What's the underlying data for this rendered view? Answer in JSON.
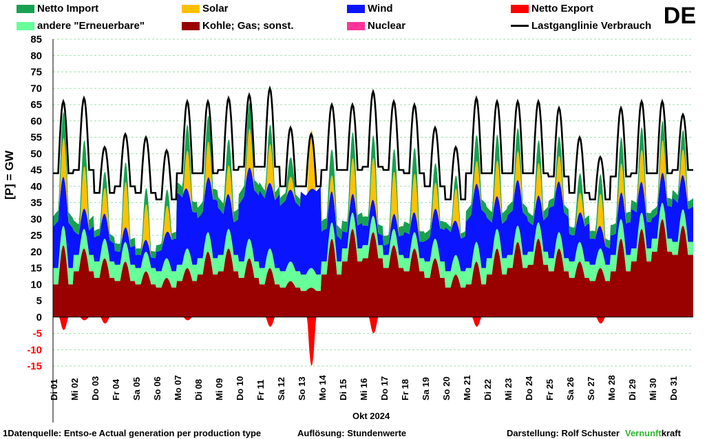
{
  "country": "DE",
  "legend": [
    {
      "label": "Netto Import",
      "color": "#17a151",
      "kind": "swatch"
    },
    {
      "label": "Solar",
      "color": "#ffc000",
      "kind": "swatch"
    },
    {
      "label": "Wind",
      "color": "#0a14ff",
      "kind": "swatch"
    },
    {
      "label": "Netto Export",
      "color": "#ff0000",
      "kind": "swatch"
    },
    {
      "label": "andere \"Erneuerbare\"",
      "color": "#66ff99",
      "kind": "swatch"
    },
    {
      "label": "Kohle; Gas; sonst.",
      "color": "#990000",
      "kind": "swatch"
    },
    {
      "label": "Nuclear",
      "color": "#ff3399",
      "kind": "swatch"
    },
    {
      "label": "Lastganglinie Verbrauch",
      "color": "#000000",
      "kind": "line"
    }
  ],
  "footer": {
    "source": "1Datenquelle: Entso-e  Actual generation per production type",
    "resolution": "Auflösung: Stundenwerte",
    "author": "Darstellung:  Rolf Schuster",
    "brand_green": "Vernunft",
    "brand_black": "kraft"
  },
  "chart_data": {
    "type": "area",
    "title": "",
    "xlabel": "Okt 2024",
    "ylabel": "[P]  =  GW",
    "ylim": [
      -15,
      85
    ],
    "yticks": [
      -15,
      -10,
      -5,
      0,
      5,
      10,
      15,
      20,
      25,
      30,
      35,
      40,
      45,
      50,
      55,
      60,
      65,
      70,
      75,
      80,
      85
    ],
    "grid": true,
    "x_categories": [
      "Di 01",
      "Mi 02",
      "Do 03",
      "Fr 04",
      "Sa 05",
      "So 06",
      "Mo 07",
      "Di 08",
      "Mi 09",
      "Do 10",
      "Fr 11",
      "Sa 12",
      "So 13",
      "Mo 14",
      "Di 15",
      "Mi 16",
      "Do 17",
      "Fr 18",
      "Sa 19",
      "So 20",
      "Mo 21",
      "Di 22",
      "Mi 23",
      "Do 24",
      "Fr 25",
      "Sa 26",
      "So 27",
      "Mo 28",
      "Di 29",
      "Mi 30",
      "Do 31"
    ],
    "x_tick_labels_shown": [
      "Di 01",
      "Mi 02",
      "Do 03",
      "Fr 04",
      "Sa 05",
      "So 06",
      "Mo 07",
      "Di 08",
      "Mi 09",
      "Do 10",
      "Fr 11",
      "Sa 12",
      "So 13",
      "Mo 14",
      "Di 15",
      "Mi 16",
      "Do 17",
      "Fr 18",
      "Sa 19",
      "So 20",
      "Mo 21",
      "Di 22",
      "Mi 23",
      "Do 24",
      "Fr 25",
      "Sa 26",
      "So 27",
      "Mo 28",
      "Di 29",
      "Mi 30",
      "Do 31"
    ],
    "series": [
      {
        "name": "Kohle; Gas; sonst.",
        "color": "#990000",
        "daily_peak": [
          22,
          21,
          18,
          17,
          14,
          12,
          15,
          20,
          21,
          18,
          15,
          11,
          9,
          24,
          27,
          26,
          22,
          21,
          18,
          13,
          17,
          21,
          23,
          24,
          21,
          17,
          15,
          24,
          27,
          30,
          28
        ],
        "daily_low": [
          10,
          14,
          12,
          11,
          10,
          9,
          11,
          13,
          14,
          12,
          10,
          9,
          8,
          13,
          17,
          18,
          15,
          14,
          12,
          9,
          10,
          13,
          15,
          16,
          14,
          12,
          11,
          14,
          17,
          20,
          19
        ]
      },
      {
        "name": "andere \"Erneuerbare\"",
        "color": "#66ff99",
        "daily_peak": [
          6,
          6,
          6,
          6,
          6,
          6,
          6,
          6,
          6,
          6,
          6,
          6,
          6,
          5,
          5,
          5,
          5,
          5,
          6,
          6,
          6,
          6,
          5,
          5,
          5,
          6,
          6,
          6,
          5,
          5,
          5
        ],
        "daily_low": [
          5,
          5,
          5,
          5,
          5,
          5,
          5,
          5,
          5,
          5,
          5,
          5,
          5,
          4,
          4,
          4,
          4,
          4,
          5,
          5,
          5,
          5,
          4,
          4,
          4,
          5,
          5,
          5,
          4,
          4,
          4
        ]
      },
      {
        "name": "Wind",
        "color": "#0a14ff",
        "daily_peak": [
          15,
          10,
          8,
          6,
          4,
          10,
          22,
          18,
          15,
          22,
          26,
          22,
          28,
          10,
          8,
          6,
          6,
          8,
          10,
          14,
          18,
          14,
          14,
          12,
          16,
          12,
          8,
          10,
          12,
          10,
          14
        ],
        "daily_low": [
          10,
          6,
          5,
          4,
          3,
          6,
          16,
          12,
          10,
          16,
          20,
          18,
          24,
          6,
          5,
          3,
          3,
          5,
          6,
          10,
          13,
          10,
          10,
          8,
          12,
          8,
          5,
          6,
          8,
          6,
          10
        ]
      },
      {
        "name": "Solar",
        "color": "#ffc000",
        "daily_peak": [
          12,
          13,
          8,
          14,
          11,
          8,
          12,
          11,
          9,
          12,
          12,
          4,
          18,
          5,
          11,
          13,
          13,
          12,
          8,
          10,
          7,
          11,
          9,
          10,
          8,
          6,
          10,
          9,
          10,
          10,
          8
        ]
      },
      {
        "name": "Netto Import",
        "color": "#17a151",
        "daily_peak": [
          8,
          8,
          5,
          6,
          5,
          5,
          8,
          8,
          8,
          8,
          6,
          6,
          0,
          8,
          8,
          7,
          7,
          8,
          6,
          4,
          8,
          8,
          7,
          7,
          6,
          6,
          6,
          8,
          7,
          6,
          6
        ]
      },
      {
        "name": "Netto Export",
        "color": "#ff0000",
        "daily_min": [
          -4,
          -1,
          -2,
          0,
          0,
          0,
          -1,
          0,
          0,
          0,
          -3,
          0,
          -15,
          0,
          0,
          -5,
          0,
          0,
          0,
          0,
          -3,
          0,
          0,
          0,
          0,
          0,
          -2,
          0,
          0,
          0,
          0
        ]
      },
      {
        "name": "Nuclear",
        "color": "#ff3399",
        "daily_peak": [
          0,
          0,
          0,
          0,
          0,
          0,
          0,
          0,
          0,
          0,
          0,
          0,
          0,
          0,
          0,
          0,
          0,
          0,
          0,
          0,
          0,
          0,
          0,
          0,
          0,
          0,
          0,
          0,
          0,
          0,
          0
        ]
      },
      {
        "name": "Lastganglinie Verbrauch",
        "color": "#000000",
        "type": "line",
        "daily_peak": [
          66,
          67,
          52,
          56,
          55,
          51,
          66,
          66,
          67,
          68,
          70,
          58,
          56,
          65,
          65,
          69,
          66,
          65,
          58,
          52,
          67,
          66,
          66,
          66,
          64,
          55,
          49,
          64,
          66,
          66,
          62
        ],
        "daily_low": [
          44,
          45,
          38,
          40,
          38,
          36,
          44,
          44,
          45,
          46,
          46,
          40,
          40,
          45,
          45,
          46,
          45,
          44,
          40,
          36,
          44,
          44,
          44,
          44,
          43,
          38,
          36,
          43,
          44,
          44,
          45
        ]
      }
    ]
  }
}
